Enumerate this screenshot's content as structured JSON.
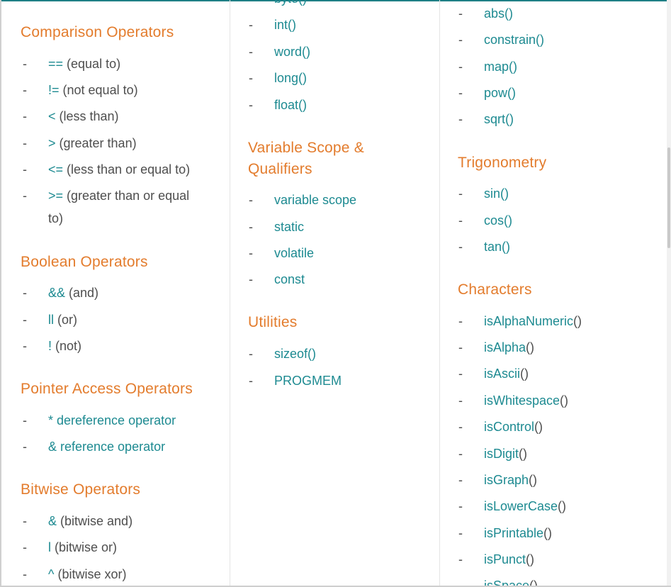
{
  "colors": {
    "heading": "#e37c2d",
    "link": "#1d8a91",
    "text": "#4e4e4e",
    "accent_line": "#1f7f86"
  },
  "col1": {
    "comparison": {
      "heading": "Comparison Operators",
      "items": [
        {
          "sym": "==",
          "desc": " (equal to)"
        },
        {
          "sym": "!=",
          "desc": " (not equal to)"
        },
        {
          "sym": "<",
          "desc": " (less than)"
        },
        {
          "sym": ">",
          "desc": " (greater than)"
        },
        {
          "sym": "<=",
          "desc": " (less than or equal to)"
        },
        {
          "sym": ">=",
          "desc": " (greater than or equal",
          "desc2": "to)"
        }
      ]
    },
    "boolean": {
      "heading": "Boolean Operators",
      "items": [
        {
          "sym": "&&",
          "desc": " (and)"
        },
        {
          "sym": "ll",
          "desc": " (or)"
        },
        {
          "sym": "!",
          "desc": " (not)"
        }
      ]
    },
    "pointer": {
      "heading": "Pointer Access Operators",
      "items": [
        {
          "sym": "* dereference operator"
        },
        {
          "sym": "& reference operator"
        }
      ]
    },
    "bitwise": {
      "heading": "Bitwise Operators",
      "items": [
        {
          "sym": "&",
          "desc": " (bitwise and)"
        },
        {
          "sym": "l",
          "desc": " (bitwise or)"
        },
        {
          "sym": "^",
          "desc": " (bitwise xor)"
        }
      ]
    }
  },
  "col2": {
    "conversion": {
      "items": [
        "byte()",
        "int()",
        "word()",
        "long()",
        "float()"
      ]
    },
    "scope": {
      "heading_line1": "Variable Scope &",
      "heading_line2": "Qualifiers",
      "items": [
        "variable scope",
        "static",
        "volatile",
        "const"
      ]
    },
    "utilities": {
      "heading": "Utilities",
      "items": [
        "sizeof()",
        "PROGMEM"
      ]
    }
  },
  "col3": {
    "math": {
      "items": [
        "abs()",
        "constrain()",
        "map()",
        "pow()",
        "sqrt()"
      ]
    },
    "trig": {
      "heading": "Trigonometry",
      "items": [
        "sin()",
        "cos()",
        "tan()"
      ]
    },
    "characters": {
      "heading": "Characters",
      "items": [
        {
          "name": "isAlphaNumeric",
          "paren": "()"
        },
        {
          "name": "isAlpha",
          "paren": "()"
        },
        {
          "name": "isAscii",
          "paren": "()"
        },
        {
          "name": "isWhitespace",
          "paren": "()"
        },
        {
          "name": "isControl",
          "paren": "()"
        },
        {
          "name": "isDigit",
          "paren": "()"
        },
        {
          "name": "isGraph",
          "paren": "()"
        },
        {
          "name": "isLowerCase",
          "paren": "()"
        },
        {
          "name": "isPrintable",
          "paren": "()"
        },
        {
          "name": "isPunct",
          "paren": "()"
        },
        {
          "name": "isSpace",
          "paren": "()"
        }
      ]
    }
  },
  "dash": "-"
}
